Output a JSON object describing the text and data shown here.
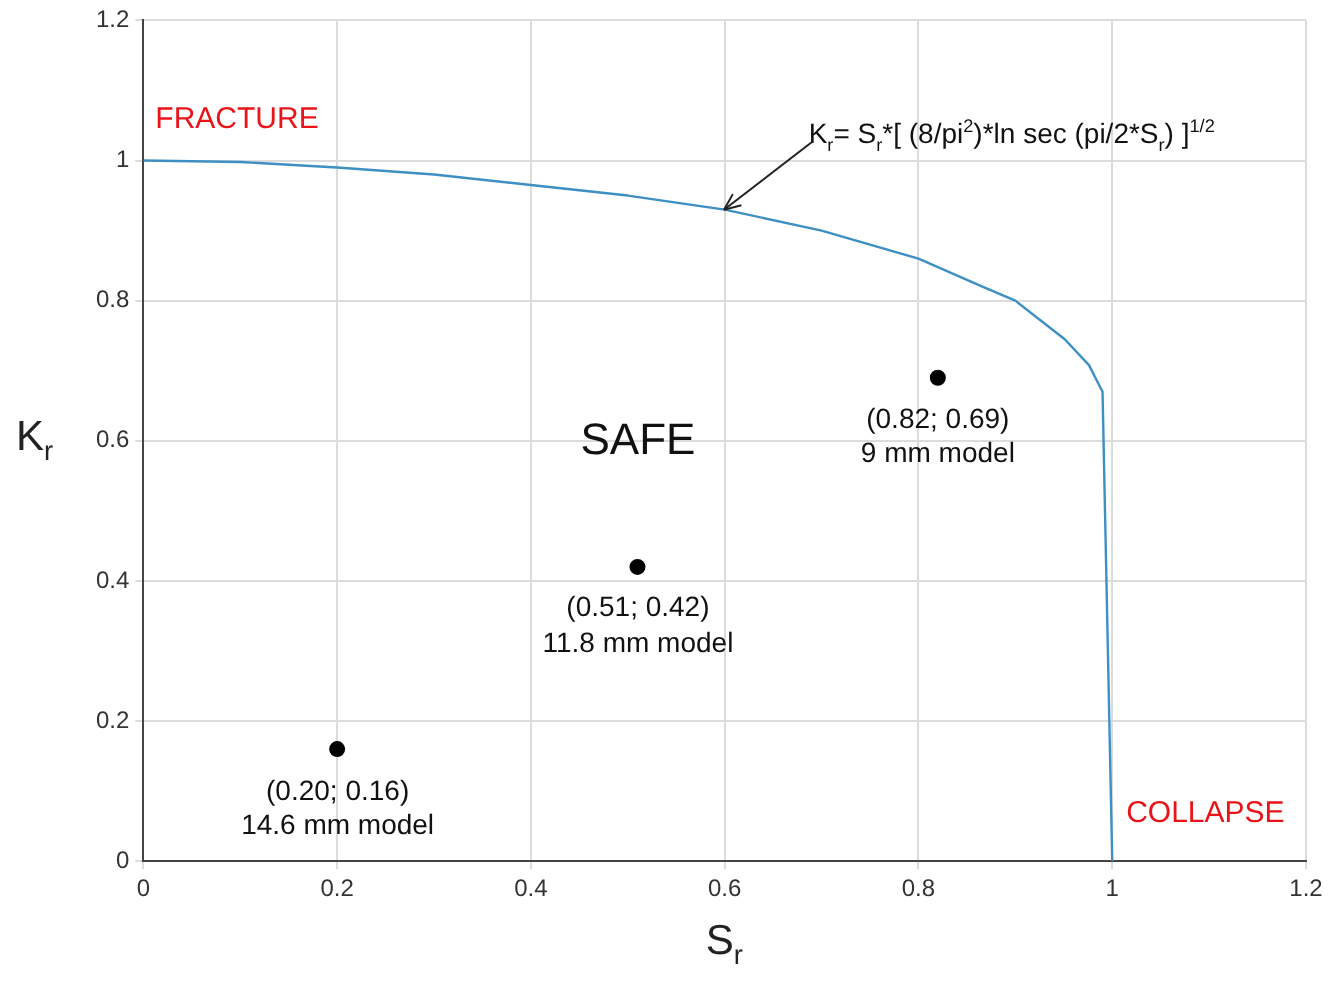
{
  "chart_data": {
    "type": "line",
    "xlabel": "S$_{r}$",
    "ylabel": "K$_{r}$",
    "xlim": [
      0,
      1.2
    ],
    "xticks": [
      0,
      0.2,
      0.4,
      0.6,
      0.8,
      1,
      1.2
    ],
    "ylim": [
      0,
      1.2
    ],
    "yticks": [
      0,
      0.2,
      0.4,
      0.6,
      0.8,
      1,
      1.2
    ],
    "grid": true,
    "legend": false,
    "series": [
      {
        "type": "line",
        "color": "#3d8fc4",
        "marker": "none",
        "line_style": "solid",
        "x": [
          0,
          0.1,
          0.2,
          0.3,
          0.4,
          0.5,
          0.6,
          0.7,
          0.8,
          0.866,
          0.9,
          0.951,
          0.976,
          0.99,
          1.0
        ],
        "values": [
          1,
          0.998,
          0.99,
          0.98,
          0.965,
          0.95,
          0.93,
          0.9,
          0.86,
          0.82,
          0.8,
          0.745,
          0.708,
          0.67,
          0
        ]
      },
      {
        "type": "scatter",
        "color": "#000000",
        "marker": "circle",
        "x": [
          0.2,
          0.51,
          0.82
        ],
        "values": [
          0.16,
          0.42,
          0.69
        ]
      }
    ],
    "annotations": [
      "FRACTURE",
      "SAFE",
      "COLLAPSE",
      "K$_{r}$= S$_{r}$*[ (8/pi$^{2}$)*ln sec (pi/2*S$_{r}$) ]$^{1/2}$",
      {
        "text": "(0.20; 0.16)\n14.6 mm model",
        "x": 0.2,
        "y": 0.16
      },
      {
        "text": "(0.51; 0.42)\n11.8 mm model",
        "x": 0.51,
        "y": 0.42
      },
      {
        "text": "(0.82; 0.69)\n9 mm model",
        "x": 0.82,
        "y": 0.69
      }
    ]
  }
}
